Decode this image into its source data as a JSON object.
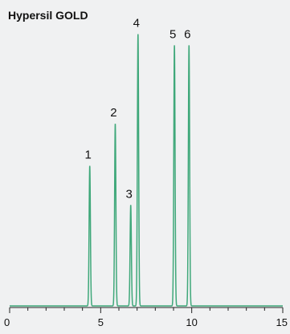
{
  "chart_data": {
    "type": "line",
    "title": "Hypersil GOLD",
    "xlabel": "",
    "ylabel": "",
    "xlim": [
      0,
      15
    ],
    "ylim": [
      0,
      1
    ],
    "x_ticks": [
      0,
      5,
      10,
      15
    ],
    "x_tick_labels": [
      "0",
      "5",
      "10",
      "15"
    ],
    "grid": false,
    "line_color": "#3fa87a",
    "peaks": [
      {
        "label": "1",
        "x": 4.4,
        "height": 0.5
      },
      {
        "label": "2",
        "x": 5.8,
        "height": 0.65
      },
      {
        "label": "3",
        "x": 6.65,
        "height": 0.36
      },
      {
        "label": "4",
        "x": 7.05,
        "height": 0.97
      },
      {
        "label": "5",
        "x": 9.05,
        "height": 0.93
      },
      {
        "label": "6",
        "x": 9.85,
        "height": 0.93
      }
    ]
  }
}
